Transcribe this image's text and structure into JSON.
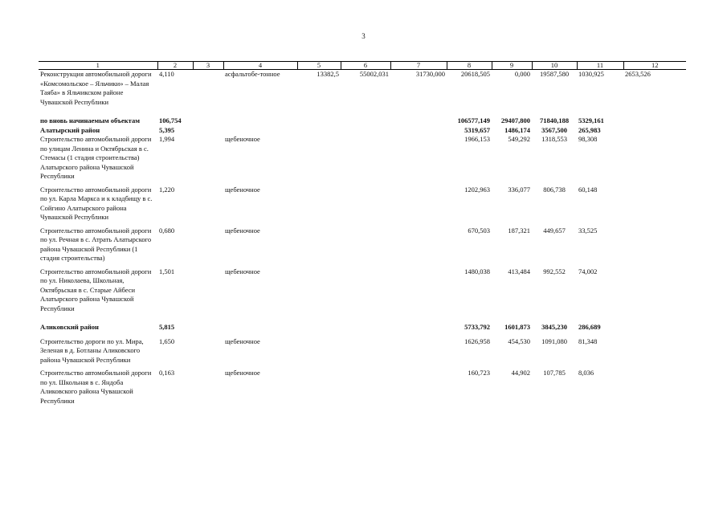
{
  "page_number": "3",
  "headers": [
    "1",
    "2",
    "3",
    "4",
    "5",
    "6",
    "7",
    "8",
    "9",
    "10",
    "11",
    "12"
  ],
  "rows": [
    {
      "name": "Реконструкция автомобильной дороги «Комсомольское – Яльчики» – Малая Таяба» в Яльчикском районе Чувашской Республики",
      "c2": "4,110",
      "c3": "",
      "c4": "асфальтобе-тонное",
      "c5": "13382,5",
      "c6": "55002,031",
      "c7": "31730,000",
      "c8": "20618,505",
      "c9": "0,000",
      "c10": "19587,580",
      "c11": "1030,925",
      "c12": "2653,526"
    },
    {
      "name": "по вновь начинаемым объектам",
      "c2": "106,754",
      "c3": "",
      "c4": "",
      "c5": "",
      "c6": "",
      "c7": "",
      "c8": "106577,149",
      "c9": "29407,800",
      "c10": "71840,188",
      "c11": "5329,161",
      "c12": ""
    },
    {
      "name": "Алатырский район",
      "c2": "5,395",
      "c3": "",
      "c4": "",
      "c5": "",
      "c6": "",
      "c7": "",
      "c8": "5319,657",
      "c9": "1486,174",
      "c10": "3567,500",
      "c11": "265,983",
      "c12": ""
    },
    {
      "name": "Строительство автомобильной дороги по улицам Ленина и Октябрьская в с. Стемасы (1 стадия строительства) Алатырского района Чувашской Республики",
      "c2": "1,994",
      "c3": "",
      "c4": "щебеночное",
      "c5": "",
      "c6": "",
      "c7": "",
      "c8": "1966,153",
      "c9": "549,292",
      "c10": "1318,553",
      "c11": "98,308",
      "c12": ""
    },
    {
      "name": "Строительство автомобильной дороги по ул. Карла Маркса и к кладбищу в с. Сойгино Алатырского района Чувашской Республики",
      "c2": "1,220",
      "c3": "",
      "c4": "щебеночное",
      "c5": "",
      "c6": "",
      "c7": "",
      "c8": "1202,963",
      "c9": "336,077",
      "c10": "806,738",
      "c11": "60,148",
      "c12": ""
    },
    {
      "name": "Строительство автомобильной дороги по ул. Речная в с. Атрать Алатырского района Чувашской Республики (1 стадия строительства)",
      "c2": "0,680",
      "c3": "",
      "c4": "щебеночное",
      "c5": "",
      "c6": "",
      "c7": "",
      "c8": "670,503",
      "c9": "187,321",
      "c10": "449,657",
      "c11": "33,525",
      "c12": ""
    },
    {
      "name": "Строительство автомобильной дороги по ул. Николаева, Школьная, Октябрьская в с. Старые Айбеси Алатырского района Чувашской Республики",
      "c2": "1,501",
      "c3": "",
      "c4": "щебеночное",
      "c5": "",
      "c6": "",
      "c7": "",
      "c8": "1480,038",
      "c9": "413,484",
      "c10": "992,552",
      "c11": "74,002",
      "c12": ""
    },
    {
      "name": "Аликовский район",
      "c2": "5,815",
      "c3": "",
      "c4": "",
      "c5": "",
      "c6": "",
      "c7": "",
      "c8": "5733,792",
      "c9": "1601,873",
      "c10": "3845,230",
      "c11": "286,689",
      "c12": ""
    },
    {
      "name": "Строительство дороги по ул. Мира, Зеленая в д. Ботланы Аликовского района Чувашской Республики",
      "c2": "1,650",
      "c3": "",
      "c4": "щебеночное",
      "c5": "",
      "c6": "",
      "c7": "",
      "c8": "1626,958",
      "c9": "454,530",
      "c10": "1091,080",
      "c11": "81,348",
      "c12": ""
    },
    {
      "name": "Строительство автомобильной дороги по ул. Школьная в с. Яндоба Аликовского района Чувашской Республики",
      "c2": "0,163",
      "c3": "",
      "c4": "щебеночное",
      "c5": "",
      "c6": "",
      "c7": "",
      "c8": "160,723",
      "c9": "44,902",
      "c10": "107,785",
      "c11": "8,036",
      "c12": ""
    }
  ]
}
